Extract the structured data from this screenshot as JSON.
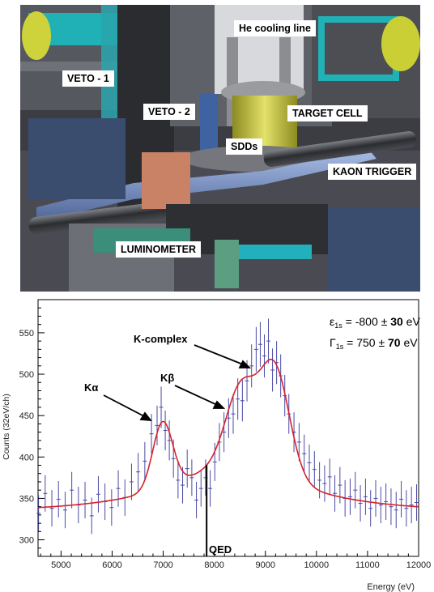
{
  "figure": {
    "render": {
      "labels": {
        "he_cooling_line": "He cooling line",
        "veto_1": "VETO - 1",
        "veto_2": "VETO - 2",
        "target_cell": "TARGET CELL",
        "sdds": "SDDs",
        "kaon_trigger": "KAON TRIGGER",
        "luminometer": "LUMINOMETER"
      }
    }
  },
  "chart_data": {
    "type": "scatter",
    "xlabel": "Energy (eV)",
    "ylabel": "Counts (32eV/ch)",
    "xlim": [
      4550,
      12000
    ],
    "ylim": [
      280,
      590
    ],
    "x_ticks": [
      5000,
      6000,
      7000,
      8000,
      9000,
      10000,
      11000,
      12000
    ],
    "y_ticks": [
      300,
      350,
      400,
      450,
      500,
      550
    ],
    "grid": false,
    "colors": {
      "data": "#4a4aa6",
      "fit": "#d8202a",
      "qed": "#000000"
    },
    "annotations": {
      "epsilon": {
        "sym": "ε",
        "sub": "1s",
        "pre": " = -800 ± ",
        "bold": "30",
        "unit": " eV"
      },
      "gamma": {
        "sym": "Γ",
        "sub": "1s",
        "pre": " = 750 ± ",
        "bold": "70",
        "unit": " eV"
      },
      "k_complex": "K-complex",
      "k_alpha": "Kα",
      "k_beta": "Kβ",
      "qed": "QED"
    },
    "qed_line_x": 7850,
    "fit": {
      "baseline": 340,
      "peaks": [
        {
          "center": 6990,
          "amplitude": 80,
          "sigma": 195
        },
        {
          "center": 8520,
          "amplitude": 92,
          "sigma": 290
        },
        {
          "center": 9180,
          "amplitude": 130,
          "sigma": 290
        }
      ],
      "tail": {
        "center": 8400,
        "amplitude": 60,
        "width": 1500
      }
    },
    "series": [
      {
        "x": [
          4560,
          4690,
          4820,
          4950,
          5080,
          5210,
          5340,
          5470,
          5600,
          5730,
          5860,
          5990,
          6120,
          6250,
          6380,
          6510,
          6640,
          6770,
          6880,
          6960,
          7040,
          7120,
          7200,
          7290,
          7380,
          7470,
          7560,
          7650,
          7740,
          7830,
          7920,
          8010,
          8100,
          8190,
          8280,
          8370,
          8460,
          8550,
          8640,
          8730,
          8820,
          8900,
          8980,
          9060,
          9140,
          9220,
          9300,
          9380,
          9460,
          9560,
          9660,
          9760,
          9860,
          9960,
          10060,
          10160,
          10260,
          10360,
          10460,
          10560,
          10660,
          10760,
          10860,
          10960,
          11060,
          11160,
          11260,
          11360,
          11460,
          11560,
          11660,
          11760,
          11860,
          11960
        ],
        "y": [
          332,
          356,
          338,
          349,
          336,
          360,
          342,
          348,
          329,
          355,
          346,
          339,
          362,
          351,
          370,
          382,
          395,
          428,
          438,
          460,
          432,
          420,
          398,
          372,
          366,
          386,
          375,
          348,
          362,
          375,
          362,
          394,
          418,
          430,
          447,
          452,
          470,
          468,
          492,
          510,
          530,
          536,
          522,
          540,
          505,
          514,
          498,
          474,
          452,
          430,
          418,
          404,
          393,
          385,
          372,
          368,
          376,
          356,
          366,
          350,
          352,
          360,
          344,
          352,
          338,
          350,
          342,
          346,
          340,
          336,
          349,
          338,
          342,
          345
        ],
        "err": [
          22,
          22,
          22,
          22,
          22,
          22,
          22,
          22,
          22,
          22,
          22,
          22,
          22,
          22,
          22,
          23,
          23,
          24,
          24,
          25,
          24,
          24,
          23,
          22,
          22,
          23,
          22,
          22,
          22,
          22,
          22,
          23,
          23,
          24,
          24,
          24,
          25,
          25,
          25,
          26,
          27,
          27,
          26,
          27,
          26,
          26,
          26,
          25,
          24,
          24,
          23,
          23,
          22,
          22,
          22,
          22,
          22,
          22,
          22,
          22,
          22,
          22,
          22,
          22,
          22,
          22,
          22,
          22,
          22,
          22,
          22,
          22,
          22,
          22
        ]
      }
    ]
  }
}
